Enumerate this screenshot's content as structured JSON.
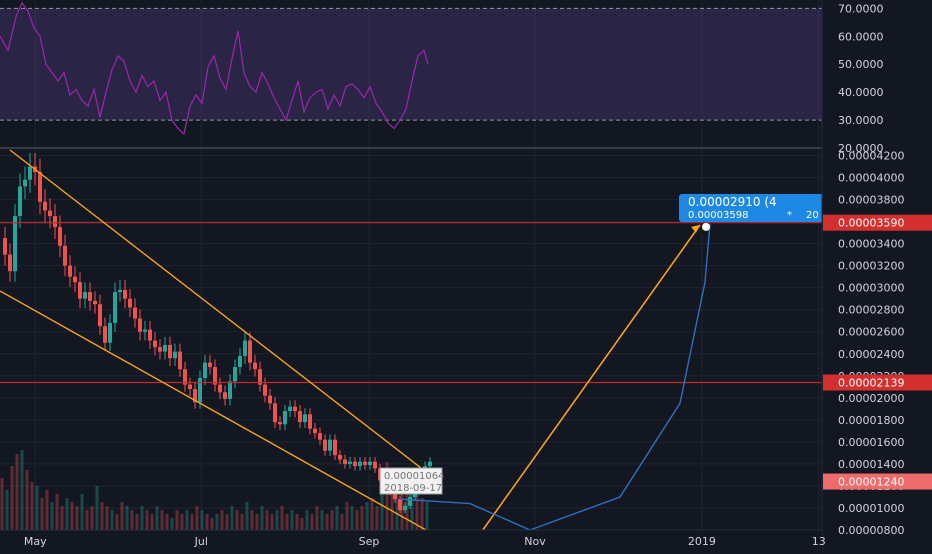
{
  "colors": {
    "background": "#131722",
    "grid": "#1f2430",
    "axis_text": "#d1d4dc",
    "up": "#26a69a",
    "down": "#ef5350",
    "rsi_line": "#9c27b0",
    "rsi_band": "#7e57c2",
    "trendline": "#f7a21b",
    "curve": "#2f6fbf",
    "level_red": "#c62828",
    "label_blue": "#1e88e5",
    "label_red_bg": "#d32f2f",
    "label_light_red_bg": "#f06b6b"
  },
  "chart_data": [
    {
      "type": "line",
      "name": "RSI",
      "ylim": [
        20,
        73
      ],
      "y_ticks": [
        "70.0000",
        "60.0000",
        "50.0000",
        "40.0000",
        "30.0000",
        "20.0000"
      ],
      "y_tick_values": [
        70,
        60,
        50,
        40,
        30,
        20
      ],
      "band": [
        30,
        70
      ],
      "x": [
        0,
        8,
        16,
        22,
        28,
        34,
        40,
        46,
        52,
        58,
        64,
        70,
        76,
        82,
        88,
        94,
        100,
        106,
        112,
        118,
        124,
        130,
        136,
        142,
        148,
        154,
        160,
        166,
        172,
        178,
        184,
        190,
        196,
        202,
        208,
        214,
        220,
        226,
        232,
        238,
        244,
        250,
        256,
        262,
        268,
        274,
        280,
        286,
        292,
        298,
        304,
        310,
        316,
        322,
        328,
        334,
        340,
        346,
        352,
        358,
        364,
        370,
        376,
        382,
        388,
        394,
        400,
        406,
        412,
        418,
        424,
        428
      ],
      "values": [
        60,
        55,
        67,
        72,
        69,
        63,
        60,
        50,
        47,
        44,
        47,
        39,
        41,
        37,
        35,
        41,
        31,
        40,
        48,
        53,
        51,
        44,
        40,
        46,
        42,
        44,
        37,
        40,
        30,
        27,
        25,
        35,
        39,
        36,
        49,
        53,
        45,
        41,
        52,
        62,
        47,
        42,
        40,
        47,
        43,
        38,
        34,
        30,
        37,
        44,
        33,
        38,
        40,
        41,
        34,
        39,
        35,
        42,
        43,
        41,
        38,
        42,
        36,
        33,
        29,
        27,
        30,
        34,
        44,
        53,
        55,
        50
      ]
    },
    {
      "type": "candlestick",
      "name": "Price",
      "ylim": [
        8e-06,
        4.25e-05
      ],
      "y_ticks": [
        "0.00004200",
        "0.00004000",
        "0.00003800",
        "0.00003600",
        "0.00003400",
        "0.00003200",
        "0.00003000",
        "0.00002800",
        "0.00002600",
        "0.00002400",
        "0.00002200",
        "0.00002000",
        "0.00001800",
        "0.00001600",
        "0.00001400",
        "0.00001200",
        "0.00001000",
        "0.00000800"
      ],
      "y_tick_values": [
        4.2e-05,
        4e-05,
        3.8e-05,
        3.6e-05,
        3.4e-05,
        3.2e-05,
        3e-05,
        2.8e-05,
        2.6e-05,
        2.4e-05,
        2.2e-05,
        2e-05,
        1.8e-05,
        1.6e-05,
        1.4e-05,
        1.2e-05,
        1e-05,
        8e-06
      ],
      "x_labels": [
        "May",
        "Jul",
        "Sep",
        "Nov",
        "2019",
        "13"
      ],
      "x_label_positions": [
        0.037,
        0.24,
        0.445,
        0.648,
        0.852,
        0.995
      ],
      "close_path": {
        "x": [
          0,
          5,
          10,
          15,
          20,
          25,
          30,
          35,
          40,
          45,
          50,
          55,
          60,
          65,
          70,
          75,
          80,
          85,
          90,
          95,
          100,
          105,
          110,
          115,
          120,
          125,
          130,
          135,
          140,
          145,
          150,
          155,
          160,
          165,
          170,
          175,
          180,
          185,
          190,
          195,
          200,
          205,
          210,
          215,
          220,
          225,
          230,
          235,
          240,
          245,
          250,
          255,
          260,
          265,
          270,
          275,
          280,
          285,
          290,
          295,
          300,
          305,
          310,
          315,
          320,
          325,
          330,
          335,
          340,
          345,
          350,
          355,
          360,
          365,
          370,
          375,
          380,
          385,
          390,
          395,
          400,
          405,
          410,
          415,
          420,
          425,
          430
        ],
        "values": [
          3.45e-05,
          3.3e-05,
          3.15e-05,
          3.65e-05,
          3.92e-05,
          3.98e-05,
          4.1e-05,
          4.05e-05,
          3.78e-05,
          3.7e-05,
          3.65e-05,
          3.55e-05,
          3.38e-05,
          3.2e-05,
          3.1e-05,
          3.05e-05,
          2.9e-05,
          2.96e-05,
          2.88e-05,
          2.85e-05,
          2.65e-05,
          2.5e-05,
          2.68e-05,
          2.96e-05,
          2.98e-05,
          2.9e-05,
          2.82e-05,
          2.72e-05,
          2.6e-05,
          2.62e-05,
          2.52e-05,
          2.46e-05,
          2.42e-05,
          2.48e-05,
          2.36e-05,
          2.42e-05,
          2.26e-05,
          2.12e-05,
          2.08e-05,
          1.96e-05,
          2.18e-05,
          2.32e-05,
          2.28e-05,
          2.12e-05,
          2.05e-05,
          1.99e-05,
          2.15e-05,
          2.28e-05,
          2.38e-05,
          2.52e-05,
          2.32e-05,
          2.26e-05,
          2.12e-05,
          2.02e-05,
          1.95e-05,
          1.78e-05,
          1.76e-05,
          1.88e-05,
          1.92e-05,
          1.88e-05,
          1.78e-05,
          1.85e-05,
          1.72e-05,
          1.68e-05,
          1.62e-05,
          1.52e-05,
          1.62e-05,
          1.48e-05,
          1.44e-05,
          1.4e-05,
          1.42e-05,
          1.38e-05,
          1.42e-05,
          1.39e-05,
          1.42e-05,
          1.36e-05,
          1.25e-05,
          1.18e-05,
          1.15e-05,
          1.08e-05,
          9.8e-06,
          1.02e-05,
          1.1e-05,
          1.25e-05,
          1.32e-05,
          1.38e-05,
          1.42e-05
        ]
      },
      "volume": {
        "x": [
          2,
          7,
          12,
          17,
          22,
          27,
          32,
          37,
          42,
          47,
          52,
          57,
          62,
          67,
          72,
          77,
          82,
          87,
          92,
          97,
          102,
          107,
          112,
          117,
          122,
          127,
          132,
          137,
          142,
          147,
          152,
          157,
          162,
          167,
          172,
          177,
          182,
          187,
          192,
          197,
          202,
          207,
          212,
          217,
          222,
          227,
          232,
          237,
          242,
          247,
          252,
          257,
          262,
          267,
          272,
          277,
          282,
          287,
          292,
          297,
          302,
          307,
          312,
          317,
          322,
          327,
          332,
          337,
          342,
          347,
          352,
          357,
          362,
          367,
          372,
          377,
          382,
          387,
          392,
          397,
          402,
          407,
          412,
          417,
          422,
          427
        ],
        "values": [
          0.65,
          0.5,
          0.8,
          0.95,
          1.0,
          0.75,
          0.6,
          0.55,
          0.4,
          0.5,
          0.35,
          0.45,
          0.3,
          0.4,
          0.35,
          0.3,
          0.45,
          0.25,
          0.3,
          0.55,
          0.35,
          0.3,
          0.25,
          0.2,
          0.35,
          0.3,
          0.25,
          0.2,
          0.3,
          0.25,
          0.2,
          0.3,
          0.25,
          0.2,
          0.15,
          0.25,
          0.2,
          0.25,
          0.2,
          0.3,
          0.25,
          0.2,
          0.15,
          0.2,
          0.25,
          0.2,
          0.3,
          0.25,
          0.2,
          0.35,
          0.25,
          0.2,
          0.3,
          0.25,
          0.2,
          0.25,
          0.3,
          0.2,
          0.25,
          0.2,
          0.15,
          0.25,
          0.2,
          0.3,
          0.25,
          0.2,
          0.25,
          0.3,
          0.2,
          0.35,
          0.3,
          0.25,
          0.3,
          0.35,
          0.4,
          0.3,
          0.7,
          0.85,
          0.6,
          0.75,
          0.5,
          0.45,
          0.55,
          0.6,
          0.4,
          0.35
        ]
      },
      "channel_upper": {
        "x": [
          10,
          430
        ],
        "y": [
          4.25e-05,
          1.3e-05
        ]
      },
      "channel_lower": {
        "x": [
          0,
          430
        ],
        "y": [
          2.97e-05,
          7.8e-06
        ]
      },
      "arrow": {
        "from": {
          "x": 482,
          "y": 7.9e-06
        },
        "to": {
          "x": 700,
          "y": 3.57e-05
        }
      },
      "curve": {
        "x": [
          400,
          470,
          530,
          620,
          680,
          705,
          710
        ],
        "y": [
          1.08e-05,
          1.04e-05,
          8e-06,
          1.1e-05,
          1.95e-05,
          3.05e-05,
          3.58e-05
        ]
      },
      "levels": [
        3.59e-05,
        2.139e-05
      ],
      "price_labels": [
        {
          "text": "0.00003590",
          "value": 3.59e-05,
          "style": "red"
        },
        {
          "text": "0.00002139",
          "value": 2.139e-05,
          "style": "red"
        },
        {
          "text": "0.00001240",
          "value": 1.24e-05,
          "style": "light-red"
        }
      ],
      "annotations": {
        "measure_box": {
          "line1": "0.00002910 (4",
          "line2": "0.00003598",
          "sep": "*",
          "line3": "20"
        },
        "cursor_box": {
          "line1": "0.00001064",
          "line2": "2018-09-17"
        }
      }
    }
  ]
}
